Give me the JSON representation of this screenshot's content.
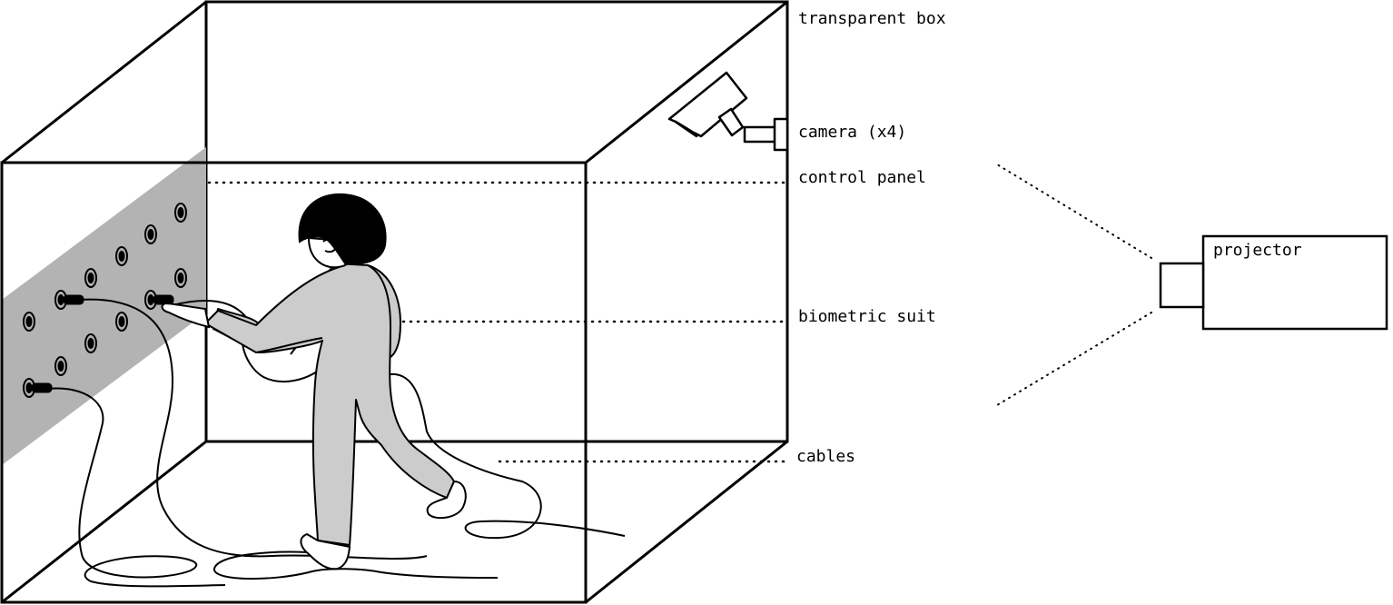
{
  "labels": {
    "transparent_box": "transparent box",
    "camera": "camera (x4)",
    "control_panel": "control panel",
    "biometric_suit": "biometric suit",
    "cables": "cables",
    "projector": "projector"
  },
  "colors": {
    "line": "#000000",
    "panel_fill": "#b3b3b3",
    "suit_fill": "#cccccc",
    "background": "#ffffff"
  }
}
